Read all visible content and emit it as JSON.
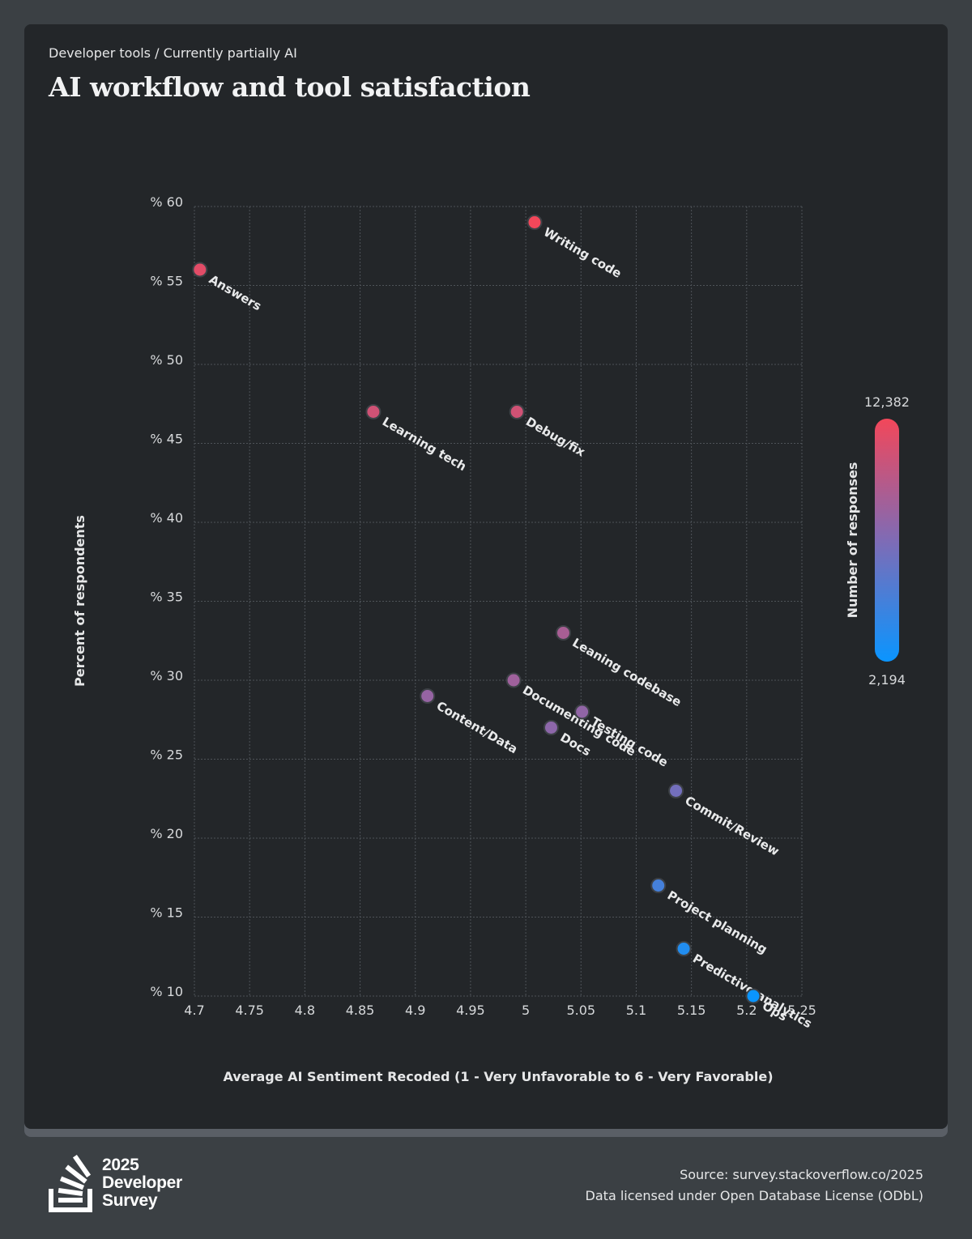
{
  "header": {
    "breadcrumb": "Developer tools / Currently partially AI",
    "title": "AI workflow and tool satisfaction"
  },
  "chart_data": {
    "type": "scatter",
    "title": "AI workflow and tool satisfaction",
    "xlabel": "Average AI Sentiment Recoded (1 - Very Unfavorable to 6 - Very Favorable)",
    "ylabel": "Percent of respondents",
    "xlim": [
      4.7,
      5.25
    ],
    "ylim": [
      10,
      60
    ],
    "x_ticks": [
      4.7,
      4.75,
      4.8,
      4.85,
      4.9,
      4.95,
      5,
      5.05,
      5.1,
      5.15,
      5.2,
      5.25
    ],
    "x_tick_labels": [
      "4.7",
      "4.75",
      "4.8",
      "4.85",
      "4.9",
      "4.95",
      "5",
      "5.05",
      "5.1",
      "5.15",
      "5.2",
      "5.25"
    ],
    "y_ticks": [
      60,
      55,
      50,
      45,
      40,
      35,
      30,
      25,
      20,
      15,
      10
    ],
    "y_tick_labels": [
      "% 60",
      "% 55",
      "% 50",
      "% 45",
      "% 40",
      "% 35",
      "% 30",
      "% 25",
      "% 20",
      "% 15",
      "% 10"
    ],
    "grid": true,
    "color_scale": {
      "label": "Number of responses",
      "min": 2194,
      "max": 12382,
      "min_label": "2,194",
      "max_label": "12,382",
      "min_color": "#0a95ff",
      "mid_color": "#7f6bb5",
      "max_color": "#f2475a",
      "placement": "right"
    },
    "points": [
      {
        "label": "Answers",
        "x": 4.705,
        "y": 56,
        "color_value": 0.93
      },
      {
        "label": "Writing code",
        "x": 5.008,
        "y": 59,
        "color_value": 1.0
      },
      {
        "label": "Learning tech",
        "x": 4.862,
        "y": 47,
        "color_value": 0.85
      },
      {
        "label": "Debug/fix",
        "x": 4.992,
        "y": 47,
        "color_value": 0.85
      },
      {
        "label": "Leaning codebase",
        "x": 5.034,
        "y": 33,
        "color_value": 0.68
      },
      {
        "label": "Documenting code",
        "x": 4.989,
        "y": 30,
        "color_value": 0.64
      },
      {
        "label": "Content/Data",
        "x": 4.911,
        "y": 29,
        "color_value": 0.6
      },
      {
        "label": "Testing code",
        "x": 5.051,
        "y": 28,
        "color_value": 0.58
      },
      {
        "label": "Docs",
        "x": 5.023,
        "y": 27,
        "color_value": 0.56
      },
      {
        "label": "Commit/Review",
        "x": 5.136,
        "y": 23,
        "color_value": 0.45
      },
      {
        "label": "Project planning",
        "x": 5.12,
        "y": 17,
        "color_value": 0.25
      },
      {
        "label": "Predictive analytics",
        "x": 5.143,
        "y": 13,
        "color_value": 0.1
      },
      {
        "label": "Ops",
        "x": 5.206,
        "y": 10,
        "color_value": 0.0
      }
    ]
  },
  "footer": {
    "logo_year": "2025",
    "logo_line2": "Developer",
    "logo_line3": "Survey",
    "source": "Source: survey.stackoverflow.co/2025",
    "license": "Data licensed under Open Database License (ODbL)"
  }
}
